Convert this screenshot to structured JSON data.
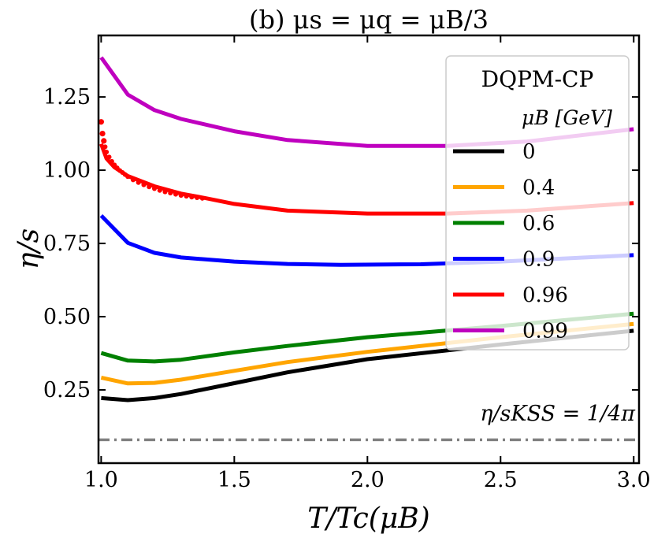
{
  "chart_data": {
    "type": "line",
    "title": "(b) μs = μq = μB/3",
    "xlabel": "T/Tc(μB)",
    "ylabel": "η/s",
    "xlim": [
      0.99,
      3.02
    ],
    "ylim": [
      0.0,
      1.46
    ],
    "xticks": [
      1.0,
      1.5,
      2.0,
      2.5,
      3.0
    ],
    "xtick_labels": [
      "1.0",
      "1.5",
      "2.0",
      "2.5",
      "3.0"
    ],
    "yticks": [
      0.25,
      0.5,
      0.75,
      1.0,
      1.25
    ],
    "ytick_labels": [
      "0.25",
      "0.50",
      "0.75",
      "1.00",
      "1.25"
    ],
    "grid": false,
    "legend": {
      "title": "DQPM-CP",
      "subtitle": "μB [GeV]",
      "placement": "top-right"
    },
    "annotation": "η/sKSS = 1/4π",
    "kss_value": 0.0796,
    "series": [
      {
        "name": "0",
        "color": "#000000",
        "x": [
          1.0,
          1.1,
          1.2,
          1.3,
          1.5,
          1.7,
          2.0,
          2.5,
          3.0
        ],
        "y": [
          0.222,
          0.215,
          0.222,
          0.236,
          0.273,
          0.31,
          0.355,
          0.405,
          0.452
        ]
      },
      {
        "name": "0.4",
        "color": "#FFA500",
        "x": [
          1.0,
          1.1,
          1.2,
          1.3,
          1.5,
          1.7,
          2.0,
          2.5,
          3.0
        ],
        "y": [
          0.292,
          0.272,
          0.274,
          0.285,
          0.315,
          0.345,
          0.38,
          0.43,
          0.475
        ]
      },
      {
        "name": "0.6",
        "color": "#008000",
        "x": [
          1.0,
          1.1,
          1.2,
          1.3,
          1.5,
          1.7,
          2.0,
          2.5,
          3.0
        ],
        "y": [
          0.376,
          0.35,
          0.347,
          0.353,
          0.378,
          0.4,
          0.43,
          0.468,
          0.51
        ]
      },
      {
        "name": "0.9",
        "color": "#0000FF",
        "x": [
          1.0,
          1.1,
          1.2,
          1.3,
          1.5,
          1.7,
          1.9,
          2.2,
          2.5,
          3.0
        ],
        "y": [
          0.845,
          0.752,
          0.718,
          0.702,
          0.688,
          0.68,
          0.677,
          0.679,
          0.688,
          0.71
        ]
      },
      {
        "name": "0.96",
        "color": "#FF0000",
        "x": [
          1.0,
          1.02,
          1.05,
          1.1,
          1.2,
          1.3,
          1.39,
          1.5,
          1.7,
          2.0,
          2.3,
          2.6,
          3.0
        ],
        "y": [
          1.09,
          1.04,
          1.01,
          0.98,
          0.945,
          0.92,
          0.905,
          0.885,
          0.862,
          0.852,
          0.852,
          0.862,
          0.888
        ]
      },
      {
        "name": "0.99",
        "color": "#BF00BF",
        "x": [
          1.0,
          1.1,
          1.2,
          1.3,
          1.5,
          1.7,
          2.0,
          2.3,
          2.6,
          3.0
        ],
        "y": [
          1.385,
          1.258,
          1.205,
          1.175,
          1.133,
          1.103,
          1.083,
          1.083,
          1.098,
          1.14
        ]
      }
    ],
    "markers": {
      "series": "0.96",
      "color": "#FF0000",
      "x": [
        1.0,
        1.005,
        1.01,
        1.015,
        1.02,
        1.03,
        1.04,
        1.05,
        1.06,
        1.07,
        1.08,
        1.09,
        1.1,
        1.12,
        1.14,
        1.16,
        1.18,
        1.2,
        1.22,
        1.24,
        1.26,
        1.28,
        1.3,
        1.32,
        1.34,
        1.36,
        1.38
      ],
      "y": [
        1.165,
        1.125,
        1.1,
        1.08,
        1.062,
        1.045,
        1.03,
        1.018,
        1.008,
        0.999,
        0.992,
        0.985,
        0.978,
        0.967,
        0.958,
        0.95,
        0.943,
        0.937,
        0.931,
        0.926,
        0.922,
        0.918,
        0.914,
        0.911,
        0.908,
        0.906,
        0.904
      ]
    }
  }
}
